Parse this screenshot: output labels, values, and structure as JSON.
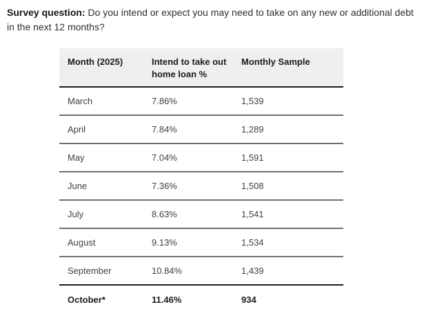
{
  "page": {
    "survey_question_label": "Survey question:",
    "survey_question_text": "Do you intend or expect you may need to take on any new or additional debt in the next 12 months?"
  },
  "table": {
    "columns": [
      {
        "label": "Month (2025)"
      },
      {
        "label": "Intend to take out home loan %"
      },
      {
        "label": "Monthly Sample"
      }
    ],
    "rows": [
      {
        "month": "March",
        "intend_pct": "7.86%",
        "sample": "1,539",
        "emphasis": false
      },
      {
        "month": "April",
        "intend_pct": "7.84%",
        "sample": "1,289",
        "emphasis": false
      },
      {
        "month": "May",
        "intend_pct": "7.04%",
        "sample": "1,591",
        "emphasis": false
      },
      {
        "month": "June",
        "intend_pct": "7.36%",
        "sample": "1,508",
        "emphasis": false
      },
      {
        "month": "July",
        "intend_pct": "8.63%",
        "sample": "1,541",
        "emphasis": false
      },
      {
        "month": "August",
        "intend_pct": "9.13%",
        "sample": "1,534",
        "emphasis": false
      },
      {
        "month": "September",
        "intend_pct": "10.84%",
        "sample": "1,439",
        "emphasis": false
      },
      {
        "month": "October*",
        "intend_pct": "11.46%",
        "sample": "934",
        "emphasis": true
      }
    ]
  },
  "colors": {
    "header_bg": "#efefef",
    "header_border": "#1b1b1b",
    "row_border": "#6f6f6f",
    "text_primary": "#1b1b1b",
    "text_secondary": "#3f3f3f"
  }
}
